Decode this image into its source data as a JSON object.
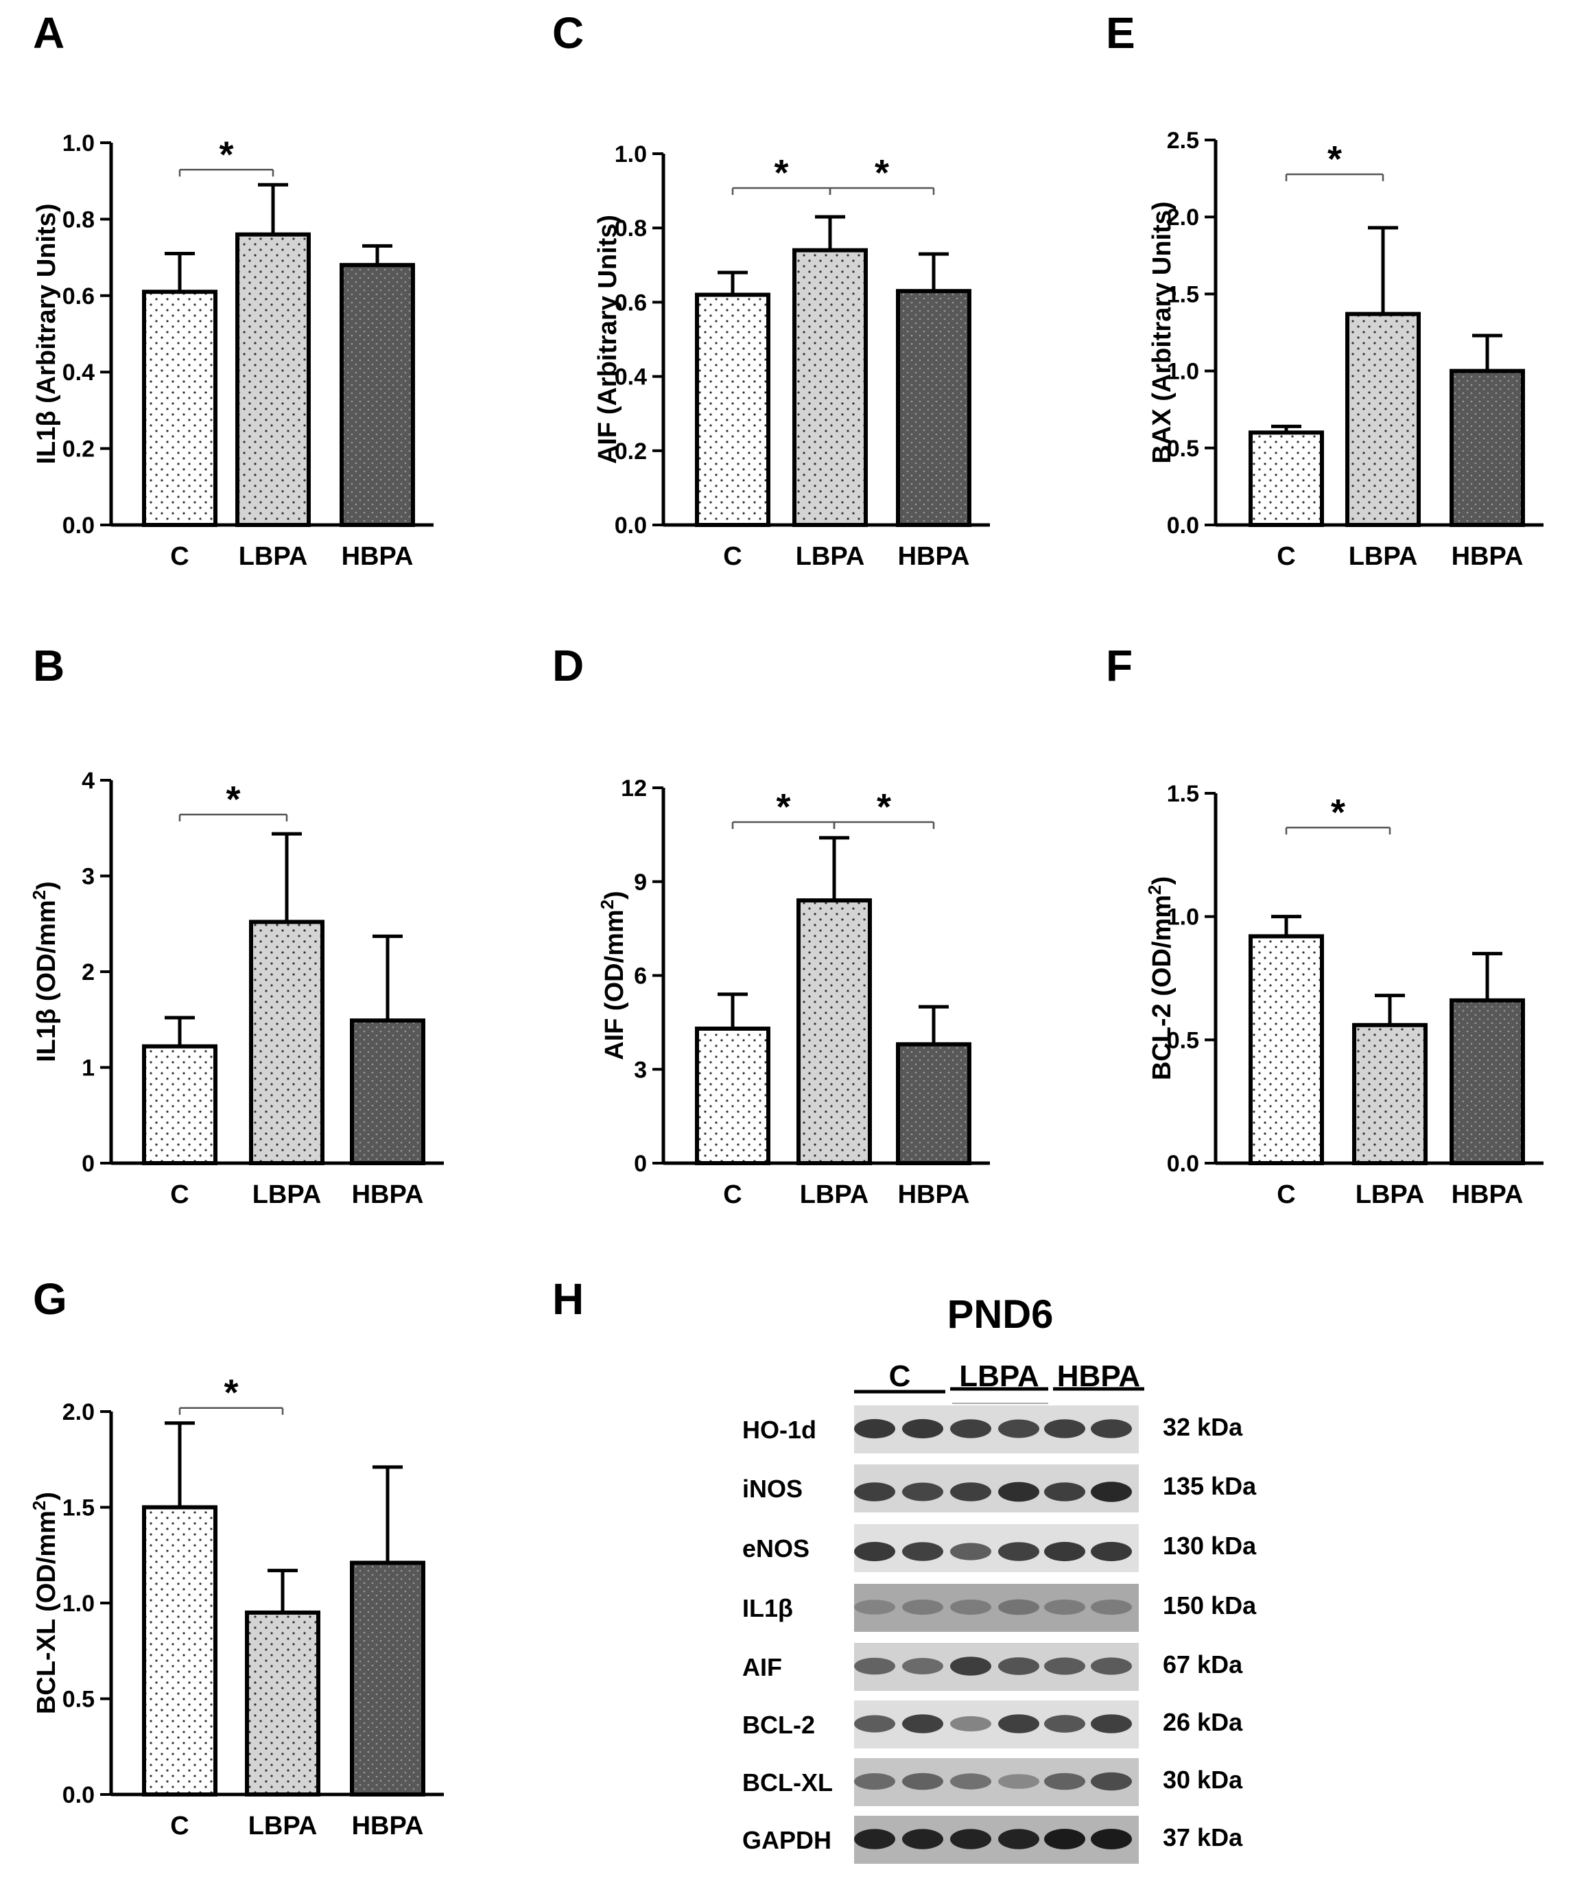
{
  "colors": {
    "axis": "#000000",
    "c_fill": "#ffffff",
    "lbpa_fill": "#d4d4d4",
    "hbpa_fill": "#585858",
    "dot_light": "#303030",
    "dot_dark": "#9a9a9a"
  },
  "chart_data": [
    {
      "panel": "A",
      "type": "bar",
      "ylabel": "IL1β (Arbitrary Units)",
      "categories": [
        "C",
        "LBPA",
        "HBPA"
      ],
      "values": [
        0.61,
        0.76,
        0.68
      ],
      "errors": [
        0.1,
        0.13,
        0.05
      ],
      "ylim": [
        0,
        1.0
      ],
      "yticks": [
        "0.0",
        "0.2",
        "0.4",
        "0.6",
        "0.8",
        "1.0"
      ],
      "significance": [
        {
          "from": "C",
          "to": "LBPA",
          "label": "*"
        }
      ]
    },
    {
      "panel": "C",
      "type": "bar",
      "ylabel": "AIF (Arbitrary Units)",
      "categories": [
        "C",
        "LBPA",
        "HBPA"
      ],
      "values": [
        0.62,
        0.74,
        0.63
      ],
      "errors": [
        0.06,
        0.09,
        0.1
      ],
      "ylim": [
        0,
        1.0
      ],
      "yticks": [
        "0.0",
        "0.2",
        "0.4",
        "0.6",
        "0.8",
        "1.0"
      ],
      "significance": [
        {
          "from": "C",
          "to": "LBPA",
          "label": "*"
        },
        {
          "from": "LBPA",
          "to": "HBPA",
          "label": "*"
        }
      ]
    },
    {
      "panel": "E",
      "type": "bar",
      "ylabel": "BAX (Arbitrary Units)",
      "categories": [
        "C",
        "LBPA",
        "HBPA"
      ],
      "values": [
        0.6,
        1.37,
        1.0
      ],
      "errors": [
        0.04,
        0.56,
        0.23
      ],
      "ylim": [
        0,
        2.5
      ],
      "yticks": [
        "0.0",
        "0.5",
        "1.0",
        "1.5",
        "2.0",
        "2.5"
      ],
      "significance": [
        {
          "from": "C",
          "to": "LBPA",
          "label": "*"
        }
      ]
    },
    {
      "panel": "B",
      "type": "bar",
      "ylabel": "IL1β (OD/mm",
      "ylabel_sup": "2",
      "ylabel_tail": ")",
      "categories": [
        "C",
        "LBPA",
        "HBPA"
      ],
      "values": [
        1.22,
        2.52,
        1.49
      ],
      "errors": [
        0.3,
        0.92,
        0.88
      ],
      "ylim": [
        0,
        4
      ],
      "yticks": [
        "0",
        "1",
        "2",
        "3",
        "4"
      ],
      "significance": [
        {
          "from": "C",
          "to": "LBPA",
          "label": "*"
        }
      ]
    },
    {
      "panel": "D",
      "type": "bar",
      "ylabel": "AIF (OD/mm",
      "ylabel_sup": "2",
      "ylabel_tail": ")",
      "categories": [
        "C",
        "LBPA",
        "HBPA"
      ],
      "values": [
        4.3,
        8.4,
        3.8
      ],
      "errors": [
        1.1,
        2.0,
        1.2
      ],
      "ylim": [
        0,
        12
      ],
      "yticks": [
        "0",
        "3",
        "6",
        "9",
        "12"
      ],
      "significance": [
        {
          "from": "C",
          "to": "LBPA",
          "label": "*"
        },
        {
          "from": "LBPA",
          "to": "HBPA",
          "label": "*"
        }
      ]
    },
    {
      "panel": "F",
      "type": "bar",
      "ylabel": "BCL-2 (OD/mm",
      "ylabel_sup": "2",
      "ylabel_tail": ")",
      "categories": [
        "C",
        "LBPA",
        "HBPA"
      ],
      "values": [
        0.92,
        0.56,
        0.66
      ],
      "errors": [
        0.08,
        0.12,
        0.19
      ],
      "ylim": [
        0,
        1.5
      ],
      "yticks": [
        "0.0",
        "0.5",
        "1.0",
        "1.5"
      ],
      "significance": [
        {
          "from": "C",
          "to": "LBPA",
          "label": "*"
        }
      ]
    },
    {
      "panel": "G",
      "type": "bar",
      "ylabel": "BCL-XL (OD/mm",
      "ylabel_sup": "2",
      "ylabel_tail": ")",
      "categories": [
        "C",
        "LBPA",
        "HBPA"
      ],
      "values": [
        1.5,
        0.95,
        1.21
      ],
      "errors": [
        0.44,
        0.22,
        0.5
      ],
      "ylim": [
        0,
        2.0
      ],
      "yticks": [
        "0.0",
        "0.5",
        "1.0",
        "1.5",
        "2.0"
      ],
      "significance": [
        {
          "from": "C",
          "to": "LBPA",
          "label": "*"
        }
      ]
    }
  ],
  "blot": {
    "panel": "H",
    "title": "PND6",
    "groups": [
      "C",
      "LBPA",
      "HBPA"
    ],
    "rows": [
      {
        "protein": "HO-1d",
        "size": "32 kDa"
      },
      {
        "protein": "iNOS",
        "size": "135 kDa"
      },
      {
        "protein": "eNOS",
        "size": "130 kDa"
      },
      {
        "protein": "IL1β",
        "size": "150 kDa"
      },
      {
        "protein": "AIF",
        "size": "67 kDa"
      },
      {
        "protein": "BCL-2",
        "size": "26 kDa"
      },
      {
        "protein": "BCL-XL",
        "size": "30 kDa"
      },
      {
        "protein": "GAPDH",
        "size": "37 kDa"
      }
    ]
  }
}
